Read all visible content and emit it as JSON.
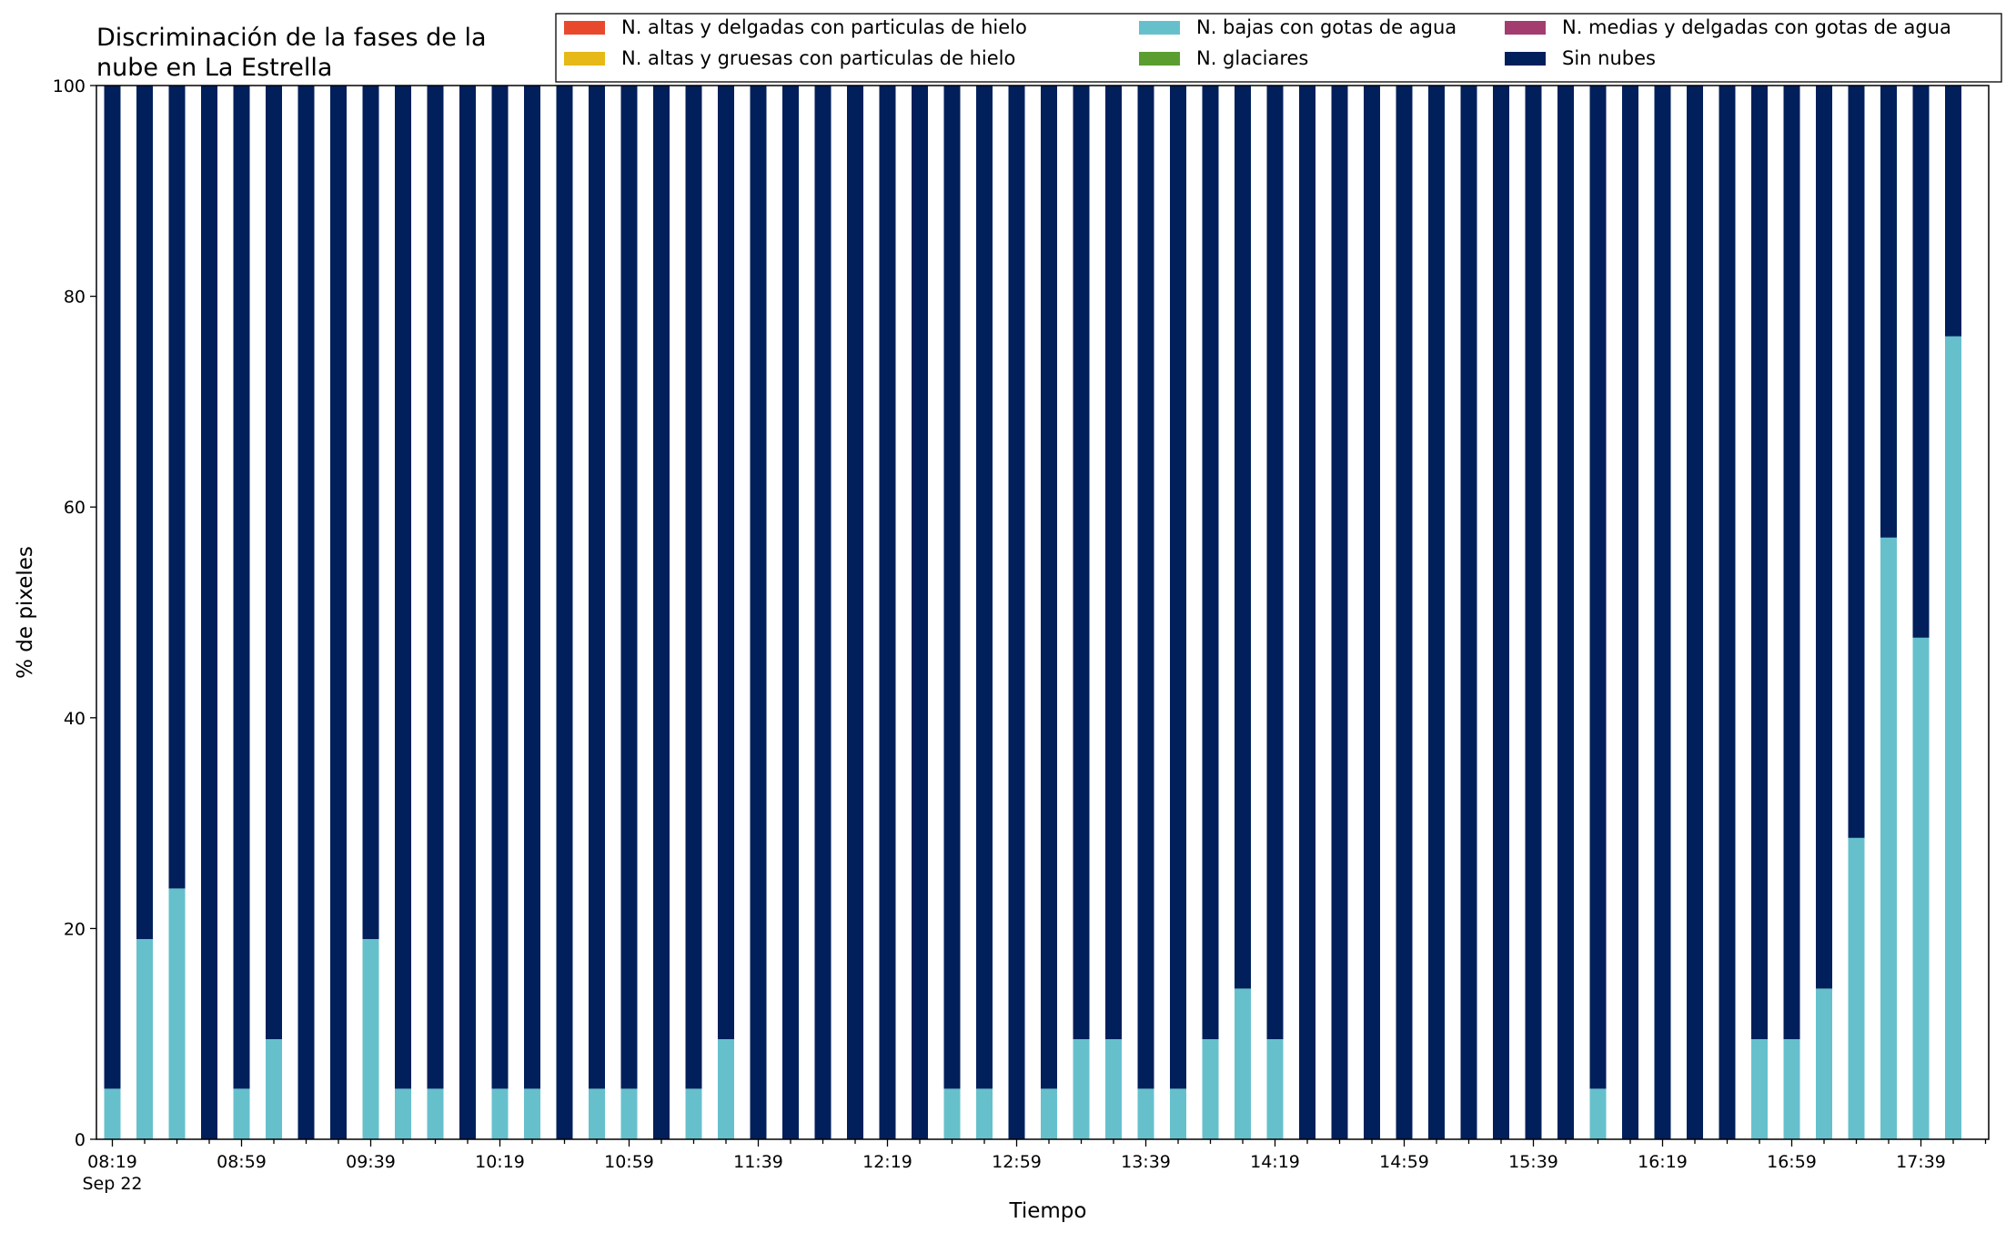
{
  "chart_data": {
    "type": "bar",
    "stacked": true,
    "title_lines": [
      "Discriminación de la fases de la",
      "nube en La Estrella"
    ],
    "xlabel": "Tiempo",
    "ylabel": "% de pixeles",
    "ylim": [
      0,
      100
    ],
    "yticks": [
      0,
      20,
      40,
      60,
      80,
      100
    ],
    "xtick_labels": [
      "08:19",
      "08:59",
      "09:39",
      "10:19",
      "10:59",
      "11:39",
      "12:19",
      "12:59",
      "13:39",
      "14:19",
      "14:59",
      "15:39",
      "16:19",
      "16:59",
      "17:39"
    ],
    "xtick_date": "Sep 22",
    "legend_position": "top-right",
    "grid": false,
    "colors": {
      "ice_thin": "#e8492d",
      "ice_thick": "#e6b818",
      "low_water": "#66c0cc",
      "glaciated": "#5a9e2f",
      "mid_water": "#a33d70",
      "clear": "#001f5b"
    },
    "series": [
      {
        "name": "N. altas y delgadas con particulas de hielo",
        "key": "ice_thin",
        "values": [
          0,
          0,
          0,
          0,
          0,
          0,
          0,
          0,
          0,
          0,
          0,
          0,
          0,
          0,
          0,
          0,
          0,
          0,
          0,
          0,
          0,
          0,
          0,
          0,
          0,
          0,
          0,
          0,
          0,
          0,
          0,
          0,
          0,
          0,
          0,
          0,
          0,
          0,
          0,
          0,
          0,
          0,
          0,
          0,
          0,
          0,
          0,
          0,
          0,
          0,
          0,
          0,
          0,
          0,
          0,
          0,
          0,
          0
        ]
      },
      {
        "name": "N. altas y gruesas con particulas de hielo",
        "key": "ice_thick",
        "values": [
          0,
          0,
          0,
          0,
          0,
          0,
          0,
          0,
          0,
          0,
          0,
          0,
          0,
          0,
          0,
          0,
          0,
          0,
          0,
          0,
          0,
          0,
          0,
          0,
          0,
          0,
          0,
          0,
          0,
          0,
          0,
          0,
          0,
          0,
          0,
          0,
          0,
          0,
          0,
          0,
          0,
          0,
          0,
          0,
          0,
          0,
          0,
          0,
          0,
          0,
          0,
          0,
          0,
          0,
          0,
          0,
          0,
          0
        ]
      },
      {
        "name": "N. bajas con gotas de agua",
        "key": "low_water",
        "values": [
          4.8,
          19,
          23.8,
          0,
          4.8,
          9.5,
          0,
          0,
          19,
          4.8,
          4.8,
          0,
          4.8,
          4.8,
          0,
          4.8,
          4.8,
          0,
          4.8,
          9.5,
          0,
          0,
          0,
          0,
          0,
          0,
          4.8,
          4.8,
          0,
          4.8,
          9.5,
          9.5,
          4.8,
          4.8,
          9.5,
          14.3,
          9.5,
          0,
          0,
          0,
          0,
          0,
          0,
          0,
          0,
          0,
          4.8,
          0,
          0,
          0,
          0,
          9.5,
          9.5,
          14.3,
          28.6,
          57.1,
          47.6,
          76.2
        ]
      },
      {
        "name": "N. glaciares",
        "key": "glaciated",
        "values": [
          0,
          0,
          0,
          0,
          0,
          0,
          0,
          0,
          0,
          0,
          0,
          0,
          0,
          0,
          0,
          0,
          0,
          0,
          0,
          0,
          0,
          0,
          0,
          0,
          0,
          0,
          0,
          0,
          0,
          0,
          0,
          0,
          0,
          0,
          0,
          0,
          0,
          0,
          0,
          0,
          0,
          0,
          0,
          0,
          0,
          0,
          0,
          0,
          0,
          0,
          0,
          0,
          0,
          0,
          0,
          0,
          0,
          0
        ]
      },
      {
        "name": "N. medias y delgadas con gotas de agua",
        "key": "mid_water",
        "values": [
          0,
          0,
          0,
          0,
          0,
          0,
          0,
          0,
          0,
          0,
          0,
          0,
          0,
          0,
          0,
          0,
          0,
          0,
          0,
          0,
          0,
          0,
          0,
          0,
          0,
          0,
          0,
          0,
          0,
          0,
          0,
          0,
          0,
          0,
          0,
          0,
          0,
          0,
          0,
          0,
          0,
          0,
          0,
          0,
          0,
          0,
          0,
          0,
          0,
          0,
          0,
          0,
          0,
          0,
          0,
          0,
          0,
          0
        ]
      },
      {
        "name": "Sin nubes",
        "key": "clear",
        "values": [
          95.2,
          81,
          76.2,
          100,
          95.2,
          90.5,
          100,
          100,
          81,
          95.2,
          95.2,
          100,
          95.2,
          95.2,
          100,
          95.2,
          95.2,
          100,
          95.2,
          90.5,
          100,
          100,
          100,
          100,
          100,
          100,
          95.2,
          95.2,
          100,
          95.2,
          90.5,
          90.5,
          95.2,
          95.2,
          90.5,
          85.7,
          90.5,
          100,
          100,
          100,
          100,
          100,
          100,
          100,
          100,
          100,
          95.2,
          100,
          100,
          100,
          100,
          90.5,
          90.5,
          85.7,
          71.4,
          42.9,
          52.4,
          23.8
        ]
      }
    ]
  }
}
